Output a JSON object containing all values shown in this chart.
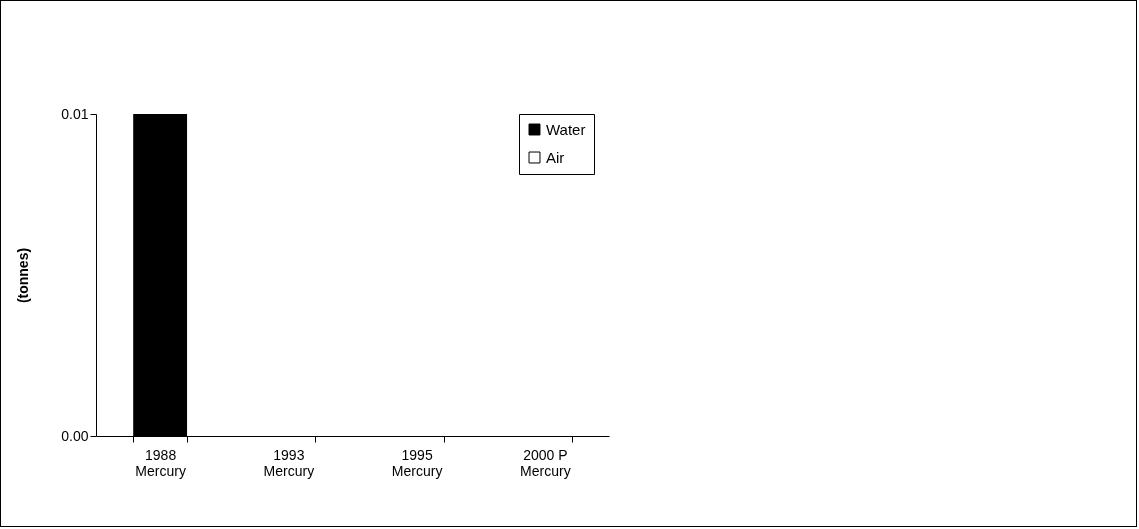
{
  "chart_data": {
    "type": "bar",
    "stacked": true,
    "ylabel": "(tonnes)",
    "categories": [
      "1988\nMercury",
      "1993\nMercury",
      "1995\nMercury",
      "2000 P\nMercury"
    ],
    "series": [
      {
        "name": "Water",
        "color": "#000000",
        "values": [
          0.01,
          0,
          0,
          0
        ]
      },
      {
        "name": "Air",
        "color": "#ffffff",
        "values": [
          0,
          0,
          0,
          0
        ]
      }
    ],
    "ylim": [
      0,
      0.01
    ],
    "yticks": [
      {
        "value": 0,
        "label": "0.00"
      },
      {
        "value": 0.01,
        "label": "0.01"
      }
    ],
    "grid": false,
    "legend": "top right"
  }
}
